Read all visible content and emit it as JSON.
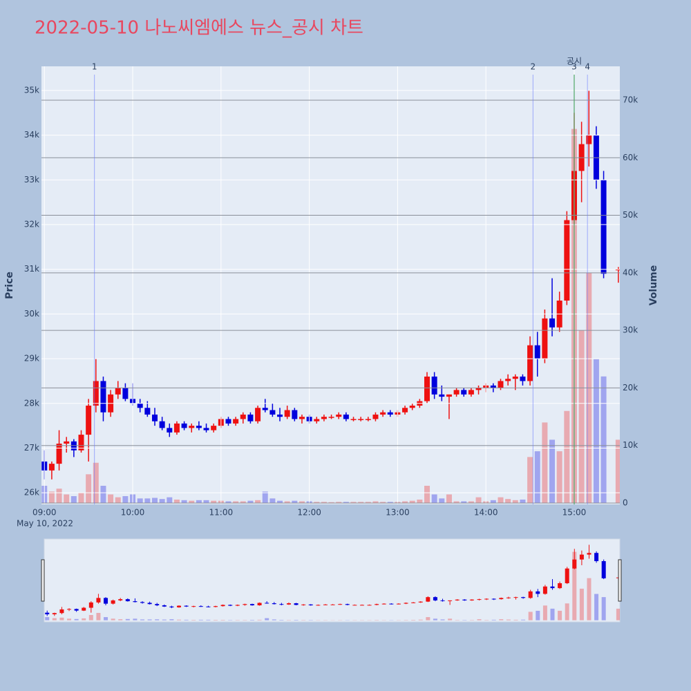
{
  "chart_data": {
    "type": "candlestick",
    "title": "2022-05-10 나노씨엠에스 뉴스_공시 차트",
    "ylabel": "Price",
    "y2label": "Volume",
    "date_label": "May 10, 2022",
    "x": [
      "09:00",
      "09:05",
      "09:10",
      "09:15",
      "09:20",
      "09:25",
      "09:30",
      "09:35",
      "09:40",
      "09:45",
      "09:50",
      "09:55",
      "10:00",
      "10:05",
      "10:10",
      "10:15",
      "10:20",
      "10:25",
      "10:30",
      "10:35",
      "10:40",
      "10:45",
      "10:50",
      "10:55",
      "11:00",
      "11:05",
      "11:10",
      "11:15",
      "11:20",
      "11:25",
      "11:30",
      "11:35",
      "11:40",
      "11:45",
      "11:50",
      "11:55",
      "12:00",
      "12:05",
      "12:10",
      "12:15",
      "12:20",
      "12:25",
      "12:30",
      "12:35",
      "12:40",
      "12:45",
      "12:50",
      "12:55",
      "13:00",
      "13:05",
      "13:10",
      "13:15",
      "13:20",
      "13:25",
      "13:30",
      "13:35",
      "13:40",
      "13:45",
      "13:50",
      "13:55",
      "14:00",
      "14:05",
      "14:10",
      "14:15",
      "14:20",
      "14:25",
      "14:30",
      "14:35",
      "14:40",
      "14:45",
      "14:50",
      "14:55",
      "15:00",
      "15:05",
      "15:10",
      "15:15",
      "15:20",
      "15:30"
    ],
    "open": [
      26700,
      26500,
      26650,
      27100,
      27150,
      26950,
      27300,
      27950,
      28500,
      27800,
      28200,
      28350,
      28100,
      28000,
      27900,
      27750,
      27600,
      27450,
      27350,
      27550,
      27450,
      27500,
      27450,
      27400,
      27500,
      27650,
      27550,
      27650,
      27750,
      27600,
      27900,
      27850,
      27750,
      27700,
      27850,
      27650,
      27700,
      27600,
      27650,
      27700,
      27700,
      27750,
      27650,
      27650,
      27650,
      27650,
      27750,
      27800,
      27750,
      27800,
      27900,
      27950,
      28050,
      28600,
      28200,
      28150,
      28200,
      28300,
      28200,
      28300,
      28350,
      28400,
      28350,
      28500,
      28550,
      28600,
      28500,
      29300,
      29000,
      29900,
      29700,
      30300,
      32100,
      33200,
      33800,
      34000,
      33000,
      31000
    ],
    "high": [
      26950,
      26700,
      27400,
      27250,
      27200,
      27400,
      28100,
      29000,
      28600,
      28300,
      28500,
      28450,
      28450,
      28100,
      28050,
      27900,
      27700,
      27550,
      27600,
      27600,
      27550,
      27600,
      27550,
      27550,
      27700,
      27700,
      27700,
      27800,
      27800,
      27950,
      28100,
      28000,
      27900,
      27950,
      27900,
      27750,
      27750,
      27700,
      27750,
      27750,
      27800,
      27800,
      27700,
      27700,
      27700,
      27800,
      27850,
      27850,
      27850,
      27950,
      28000,
      28100,
      28700,
      28700,
      28400,
      28200,
      28350,
      28350,
      28350,
      28400,
      28450,
      28450,
      28550,
      28650,
      28650,
      28650,
      29500,
      29600,
      30100,
      30800,
      30500,
      32300,
      34500,
      34300,
      35000,
      34200,
      33200,
      31050
    ],
    "low": [
      26300,
      26300,
      26500,
      26900,
      26800,
      26900,
      26700,
      27800,
      27600,
      27700,
      28100,
      28050,
      27950,
      27800,
      27700,
      27500,
      27400,
      27250,
      27300,
      27400,
      27350,
      27400,
      27350,
      27350,
      27450,
      27500,
      27500,
      27550,
      27550,
      27550,
      27800,
      27700,
      27600,
      27650,
      27600,
      27550,
      27550,
      27550,
      27600,
      27650,
      27650,
      27600,
      27600,
      27600,
      27600,
      27600,
      27700,
      27700,
      27700,
      27750,
      27850,
      27900,
      28000,
      28100,
      28050,
      27650,
      28150,
      28150,
      28150,
      28200,
      28250,
      28250,
      28300,
      28400,
      28300,
      28400,
      28400,
      28600,
      28900,
      29500,
      29600,
      30200,
      32000,
      32500,
      33300,
      32800,
      30800,
      30700
    ],
    "close": [
      26500,
      26650,
      27100,
      27150,
      26950,
      27300,
      27950,
      28500,
      27800,
      28200,
      28350,
      28100,
      28000,
      27900,
      27750,
      27600,
      27450,
      27350,
      27550,
      27450,
      27500,
      27450,
      27400,
      27500,
      27650,
      27550,
      27650,
      27750,
      27600,
      27900,
      27850,
      27750,
      27700,
      27850,
      27650,
      27700,
      27600,
      27650,
      27700,
      27700,
      27750,
      27650,
      27650,
      27650,
      27650,
      27750,
      27800,
      27750,
      27800,
      27900,
      27950,
      28050,
      28600,
      28200,
      28150,
      28200,
      28300,
      28200,
      28300,
      28350,
      28400,
      28350,
      28500,
      28550,
      28600,
      28500,
      29300,
      29000,
      29900,
      29700,
      30300,
      32100,
      33200,
      33800,
      34000,
      33000,
      30900,
      31000
    ],
    "volume": [
      3000,
      2000,
      2500,
      1500,
      1200,
      1800,
      5000,
      7000,
      3000,
      1500,
      1000,
      1200,
      1500,
      800,
      800,
      900,
      700,
      1000,
      600,
      500,
      400,
      500,
      500,
      400,
      400,
      300,
      300,
      300,
      400,
      500,
      2000,
      800,
      400,
      300,
      400,
      300,
      300,
      200,
      200,
      150,
      200,
      200,
      200,
      200,
      200,
      300,
      200,
      200,
      200,
      300,
      400,
      600,
      3000,
      1500,
      800,
      1500,
      300,
      300,
      300,
      1000,
      300,
      500,
      1000,
      700,
      500,
      600,
      8000,
      9000,
      14000,
      11000,
      9000,
      16000,
      65000,
      30000,
      40000,
      25000,
      22000,
      11000
    ],
    "increasing_color": "#ee1111",
    "decreasing_color": "#0000dd",
    "xlim": [
      "08:58",
      "15:31"
    ],
    "xticks": [
      "09:00",
      "10:00",
      "11:00",
      "12:00",
      "13:00",
      "14:00",
      "15:00"
    ],
    "ylim": [
      25740,
      35540
    ],
    "yticks": [
      {
        "value": 26000,
        "label": "26k"
      },
      {
        "value": 27000,
        "label": "27k"
      },
      {
        "value": 28000,
        "label": "28k"
      },
      {
        "value": 29000,
        "label": "29k"
      },
      {
        "value": 30000,
        "label": "30k"
      },
      {
        "value": 31000,
        "label": "31k"
      },
      {
        "value": 32000,
        "label": "32k"
      },
      {
        "value": 33000,
        "label": "33k"
      },
      {
        "value": 34000,
        "label": "34k"
      },
      {
        "value": 35000,
        "label": "35k"
      }
    ],
    "y2lim": [
      -240,
      75880
    ],
    "y2ticks": [
      0,
      {
        "value": 10000,
        "label": "10k"
      },
      {
        "value": 20000,
        "label": "20k"
      },
      {
        "value": 30000,
        "label": "30k"
      },
      {
        "value": 40000,
        "label": "40k"
      },
      {
        "value": 50000,
        "label": "50k"
      },
      {
        "value": 60000,
        "label": "60k"
      },
      {
        "value": 70000,
        "label": "70k"
      }
    ],
    "event_markers": [
      {
        "x": "09:34",
        "label": "1"
      },
      {
        "x": "14:32",
        "label": "2"
      },
      {
        "x": "15:00",
        "label": "3"
      },
      {
        "x": "15:09",
        "label": "4"
      }
    ],
    "event_color": "#6b7bff",
    "disclosure_markers": [
      {
        "x": "15:00",
        "label": "공시"
      }
    ],
    "disclosure_color": "#4caf50",
    "range_slider": true
  }
}
